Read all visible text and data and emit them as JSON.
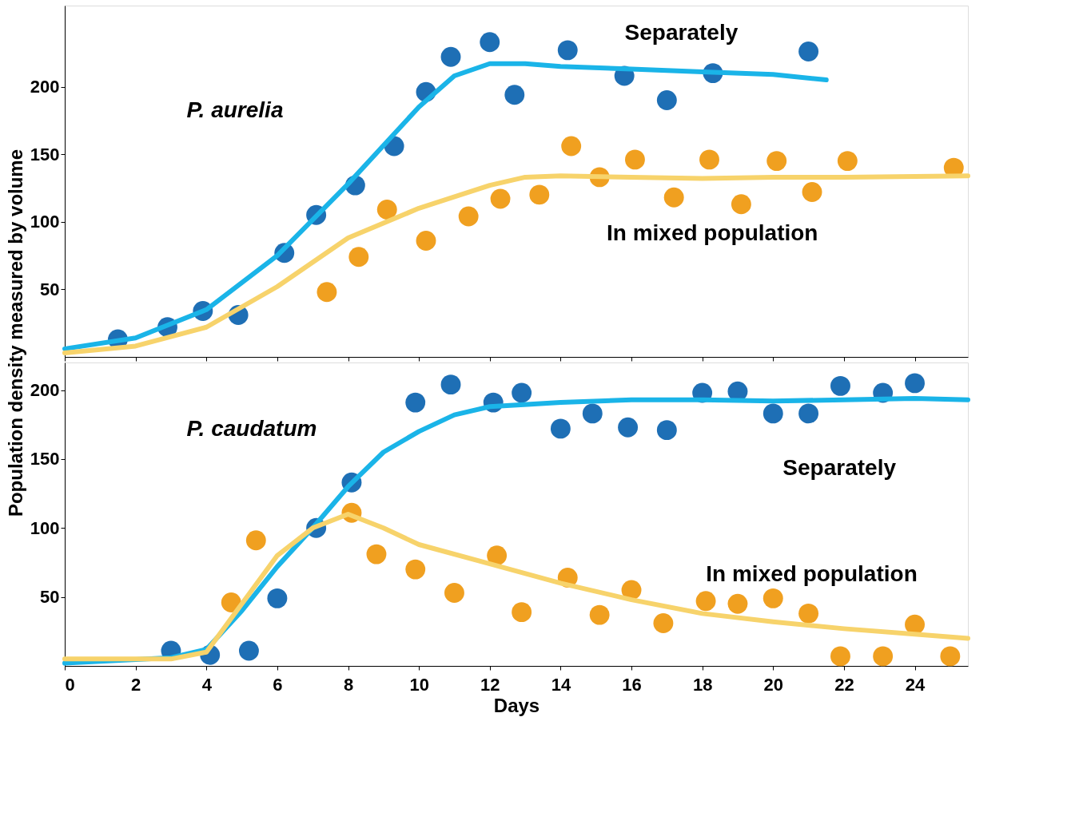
{
  "chart_data": [
    {
      "type": "scatter",
      "ylabel": "Population density measured by volume",
      "xlim": [
        0,
        25.5
      ],
      "ylim": [
        0,
        260
      ],
      "xticks": [
        0,
        2,
        4,
        6,
        8,
        10,
        12,
        14,
        16,
        18,
        20,
        22,
        24
      ],
      "yticks": [
        50,
        100,
        150,
        200
      ],
      "tick_labels": "y",
      "grid": false,
      "annotations": [
        "P. aurelia",
        "Separately",
        "In mixed population"
      ],
      "series": [
        {
          "type": "line",
          "color": "#1ab4e8",
          "line_style": "solid",
          "x": [
            0,
            2,
            4,
            6,
            8,
            10,
            11,
            12,
            13,
            14,
            16,
            18,
            20,
            21.5
          ],
          "values": [
            6,
            14,
            35,
            75,
            128,
            185,
            208,
            217,
            217,
            215,
            213,
            211,
            209,
            205
          ]
        },
        {
          "type": "line",
          "color": "#f7d36b",
          "line_style": "solid",
          "x": [
            0,
            2,
            4,
            6,
            8,
            10,
            12,
            13,
            14,
            16,
            18,
            20,
            22,
            25.5
          ],
          "values": [
            3,
            8,
            22,
            52,
            88,
            110,
            127,
            133,
            134,
            133,
            132,
            133,
            133,
            134
          ]
        },
        {
          "color": "#1e6fb5",
          "marker": "circle",
          "x": [
            1.5,
            2.9,
            3.9,
            4.9,
            6.2,
            7.1,
            8.2,
            9.3,
            10.2,
            10.9,
            12.0,
            12.7,
            14.2,
            15.8,
            17.0,
            18.3,
            21.0
          ],
          "values": [
            13,
            22,
            34,
            31,
            77,
            105,
            127,
            156,
            196,
            222,
            233,
            194,
            227,
            208,
            190,
            210,
            226
          ]
        },
        {
          "color": "#f0a020",
          "marker": "circle",
          "x": [
            7.4,
            8.3,
            9.1,
            10.2,
            11.4,
            12.3,
            13.4,
            14.3,
            15.1,
            16.1,
            17.2,
            18.2,
            19.1,
            20.1,
            21.1,
            22.1,
            25.1
          ],
          "values": [
            48,
            74,
            109,
            86,
            104,
            117,
            120,
            156,
            133,
            146,
            118,
            146,
            113,
            145,
            122,
            145,
            140
          ]
        }
      ]
    },
    {
      "type": "scatter",
      "xlabel": "Days",
      "xlim": [
        0,
        25.5
      ],
      "ylim": [
        0,
        220
      ],
      "xticks": [
        0,
        2,
        4,
        6,
        8,
        10,
        12,
        14,
        16,
        18,
        20,
        22,
        24
      ],
      "yticks": [
        50,
        100,
        150,
        200
      ],
      "grid": false,
      "annotations": [
        "P. caudatum",
        "Separately",
        "In mixed population"
      ],
      "series": [
        {
          "type": "line",
          "color": "#1ab4e8",
          "line_style": "solid",
          "x": [
            0,
            3,
            4,
            5,
            6,
            7,
            8,
            9,
            10,
            11,
            12,
            14,
            16,
            18,
            20,
            22,
            24,
            25.5
          ],
          "values": [
            2,
            6,
            12,
            40,
            72,
            100,
            130,
            155,
            170,
            182,
            188,
            191,
            193,
            193,
            192,
            193,
            194,
            193
          ]
        },
        {
          "type": "line",
          "color": "#f7d36b",
          "line_style": "solid",
          "x": [
            0,
            3,
            4,
            5,
            6,
            7,
            8,
            9,
            10,
            12,
            14,
            16,
            18,
            20,
            22,
            24,
            25.5
          ],
          "values": [
            5,
            5,
            10,
            45,
            80,
            100,
            110,
            100,
            88,
            74,
            60,
            48,
            38,
            32,
            27,
            23,
            20
          ]
        },
        {
          "color": "#1e6fb5",
          "marker": "circle",
          "x": [
            3.0,
            4.1,
            5.2,
            6.0,
            7.1,
            8.1,
            9.9,
            10.9,
            12.1,
            12.9,
            14.0,
            14.9,
            15.9,
            17.0,
            18.0,
            19.0,
            20.0,
            21.0,
            21.9,
            23.1,
            24.0
          ],
          "values": [
            11,
            8,
            11,
            49,
            100,
            133,
            191,
            204,
            191,
            198,
            172,
            183,
            173,
            171,
            198,
            199,
            183,
            183,
            203,
            198,
            205
          ]
        },
        {
          "color": "#f0a020",
          "marker": "circle",
          "x": [
            4.7,
            5.4,
            8.1,
            8.8,
            9.9,
            11.0,
            12.2,
            12.9,
            14.2,
            15.1,
            16.0,
            16.9,
            18.1,
            19.0,
            20.0,
            21.0,
            21.9,
            23.1,
            24.0,
            25.0
          ],
          "values": [
            46,
            91,
            111,
            81,
            70,
            53,
            80,
            39,
            64,
            37,
            55,
            31,
            47,
            45,
            49,
            38,
            7,
            7,
            30,
            7
          ]
        }
      ]
    }
  ]
}
